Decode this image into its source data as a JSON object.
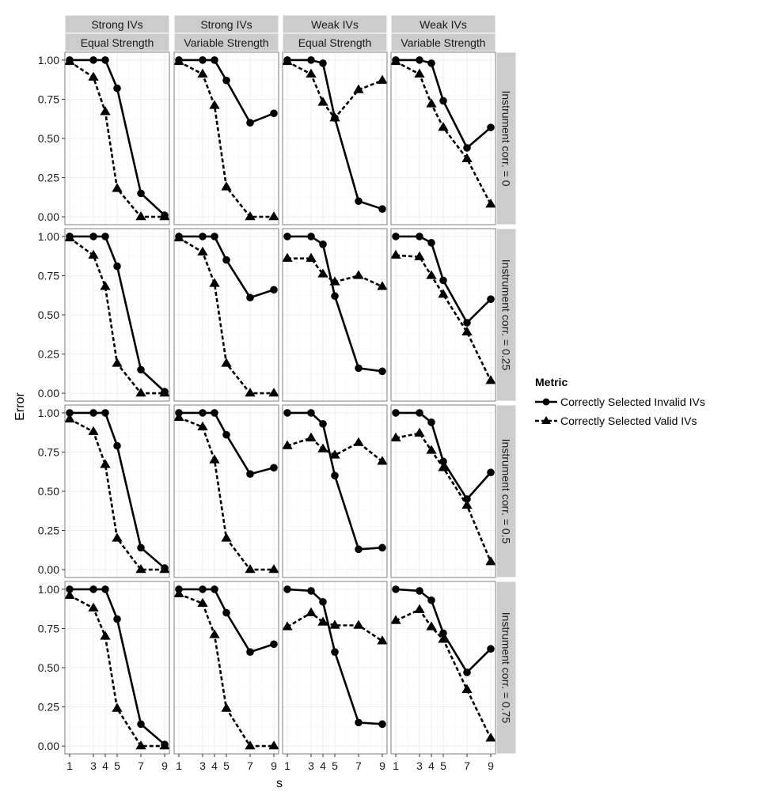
{
  "chart_data": {
    "type": "line",
    "facet_columns": [
      {
        "top": "Strong IVs",
        "bottom": "Equal Strength"
      },
      {
        "top": "Strong IVs",
        "bottom": "Variable Strength"
      },
      {
        "top": "Weak IVs",
        "bottom": "Equal Strength"
      },
      {
        "top": "Weak IVs",
        "bottom": "Variable Strength"
      }
    ],
    "facet_rows": [
      "Instrument corr. = 0",
      "Instrument corr. = 0.25",
      "Instrument corr. = 0.5",
      "Instrument corr. = 0.75"
    ],
    "x": [
      1,
      3,
      4,
      5,
      7,
      9
    ],
    "x_ticks": [
      "1",
      "3",
      "4",
      "5",
      "7",
      "9"
    ],
    "xlim": [
      0.6,
      9.4
    ],
    "y_ticks": [
      "0.00",
      "0.25",
      "0.50",
      "0.75",
      "1.00"
    ],
    "ylim": [
      -0.05,
      1.05
    ],
    "xlabel": "s",
    "ylabel": "Error",
    "grid": true,
    "legend": {
      "title": "Metric",
      "position": "right",
      "entries": [
        {
          "label": "Correctly Selected Invalid IVs",
          "marker": "circle",
          "line": "solid"
        },
        {
          "label": "Correctly Selected Valid IVs",
          "marker": "triangle",
          "line": "dashed"
        }
      ]
    },
    "panels": [
      {
        "row": 0,
        "col": 0,
        "invalid": [
          1.0,
          1.0,
          1.0,
          0.82,
          0.15,
          0.01
        ],
        "valid": [
          0.99,
          0.89,
          0.67,
          0.18,
          0.0,
          0.0
        ]
      },
      {
        "row": 0,
        "col": 1,
        "invalid": [
          1.0,
          1.0,
          1.0,
          0.87,
          0.6,
          0.66
        ],
        "valid": [
          0.99,
          0.91,
          0.71,
          0.19,
          0.0,
          0.0
        ]
      },
      {
        "row": 0,
        "col": 2,
        "invalid": [
          1.0,
          1.0,
          0.98,
          0.63,
          0.1,
          0.05
        ],
        "valid": [
          0.99,
          0.91,
          0.73,
          0.63,
          0.81,
          0.87
        ]
      },
      {
        "row": 0,
        "col": 3,
        "invalid": [
          1.0,
          1.0,
          0.98,
          0.74,
          0.44,
          0.57
        ],
        "valid": [
          0.99,
          0.91,
          0.72,
          0.57,
          0.37,
          0.08
        ]
      },
      {
        "row": 1,
        "col": 0,
        "invalid": [
          1.0,
          1.0,
          1.0,
          0.81,
          0.15,
          0.01
        ],
        "valid": [
          0.99,
          0.88,
          0.68,
          0.19,
          0.0,
          0.0
        ]
      },
      {
        "row": 1,
        "col": 1,
        "invalid": [
          1.0,
          1.0,
          1.0,
          0.85,
          0.61,
          0.66
        ],
        "valid": [
          0.99,
          0.9,
          0.7,
          0.19,
          0.0,
          0.0
        ]
      },
      {
        "row": 1,
        "col": 2,
        "invalid": [
          1.0,
          1.0,
          0.95,
          0.62,
          0.16,
          0.14
        ],
        "valid": [
          0.86,
          0.86,
          0.76,
          0.71,
          0.75,
          0.68
        ]
      },
      {
        "row": 1,
        "col": 3,
        "invalid": [
          1.0,
          1.0,
          0.96,
          0.72,
          0.45,
          0.6
        ],
        "valid": [
          0.88,
          0.87,
          0.75,
          0.63,
          0.39,
          0.08
        ]
      },
      {
        "row": 2,
        "col": 0,
        "invalid": [
          1.0,
          1.0,
          1.0,
          0.79,
          0.14,
          0.01
        ],
        "valid": [
          0.96,
          0.88,
          0.67,
          0.2,
          0.0,
          0.0
        ]
      },
      {
        "row": 2,
        "col": 1,
        "invalid": [
          1.0,
          1.0,
          1.0,
          0.86,
          0.61,
          0.65
        ],
        "valid": [
          0.97,
          0.91,
          0.7,
          0.2,
          0.0,
          0.0
        ]
      },
      {
        "row": 2,
        "col": 2,
        "invalid": [
          1.0,
          1.0,
          0.93,
          0.6,
          0.13,
          0.14
        ],
        "valid": [
          0.79,
          0.84,
          0.77,
          0.73,
          0.81,
          0.69
        ]
      },
      {
        "row": 2,
        "col": 3,
        "invalid": [
          1.0,
          1.0,
          0.94,
          0.69,
          0.45,
          0.62
        ],
        "valid": [
          0.84,
          0.87,
          0.76,
          0.65,
          0.41,
          0.05
        ]
      },
      {
        "row": 3,
        "col": 0,
        "invalid": [
          1.0,
          1.0,
          1.0,
          0.81,
          0.14,
          0.01
        ],
        "valid": [
          0.96,
          0.88,
          0.7,
          0.24,
          0.0,
          0.0
        ]
      },
      {
        "row": 3,
        "col": 1,
        "invalid": [
          1.0,
          1.0,
          1.0,
          0.85,
          0.6,
          0.65
        ],
        "valid": [
          0.97,
          0.91,
          0.71,
          0.24,
          0.0,
          0.0
        ]
      },
      {
        "row": 3,
        "col": 2,
        "invalid": [
          1.0,
          0.99,
          0.92,
          0.6,
          0.15,
          0.14
        ],
        "valid": [
          0.76,
          0.85,
          0.79,
          0.77,
          0.77,
          0.67
        ]
      },
      {
        "row": 3,
        "col": 3,
        "invalid": [
          1.0,
          0.99,
          0.93,
          0.72,
          0.47,
          0.62
        ],
        "valid": [
          0.8,
          0.87,
          0.76,
          0.68,
          0.36,
          0.05
        ]
      }
    ],
    "colors": {
      "panel_background": "#ffffff",
      "panel_border": "#7f7f7f",
      "major_grid": "#ececec",
      "minor_grid": "#f7f7f7",
      "strip_background": "#cccccc",
      "line": "#000000",
      "text": "#1a1a1a"
    }
  }
}
